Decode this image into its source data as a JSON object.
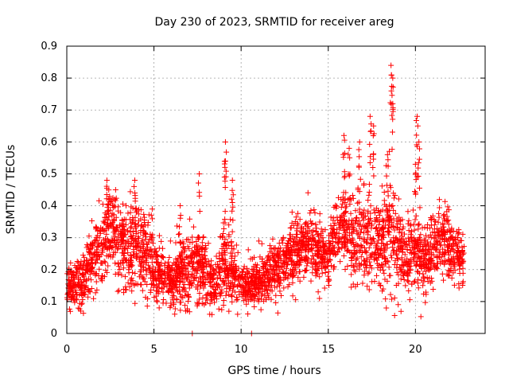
{
  "chart_data": {
    "type": "scatter",
    "title": "Day 230 of 2023, SRMTID for receiver areg",
    "xlabel": "GPS time / hours",
    "ylabel": "SRMTID / TECUs",
    "xlim": [
      0,
      24
    ],
    "ylim": [
      0,
      0.9
    ],
    "xticks": [
      0,
      5,
      10,
      15,
      20
    ],
    "xtick_labels": [
      "0",
      "5",
      "10",
      "15",
      "20"
    ],
    "yticks": [
      0,
      0.1,
      0.2,
      0.3,
      0.4,
      0.5,
      0.6,
      0.7,
      0.8,
      0.9
    ],
    "ytick_labels": [
      "0",
      "0.1",
      "0.2",
      "0.3",
      "0.4",
      "0.5",
      "0.6",
      "0.7",
      "0.8",
      "0.9"
    ],
    "grid": true,
    "marker": "+",
    "color": "#ff0000",
    "x_range_of_data": [
      0,
      22.8
    ],
    "profile": [
      [
        0.0,
        0.16,
        0.05
      ],
      [
        0.5,
        0.15,
        0.04
      ],
      [
        1.0,
        0.18,
        0.06
      ],
      [
        1.5,
        0.24,
        0.07
      ],
      [
        2.0,
        0.28,
        0.08
      ],
      [
        2.5,
        0.33,
        0.08
      ],
      [
        3.0,
        0.3,
        0.08
      ],
      [
        3.5,
        0.26,
        0.08
      ],
      [
        4.0,
        0.3,
        0.09
      ],
      [
        4.5,
        0.24,
        0.07
      ],
      [
        5.0,
        0.21,
        0.06
      ],
      [
        5.5,
        0.17,
        0.05
      ],
      [
        6.0,
        0.17,
        0.05
      ],
      [
        6.5,
        0.19,
        0.06
      ],
      [
        7.0,
        0.2,
        0.07
      ],
      [
        7.5,
        0.22,
        0.08
      ],
      [
        8.0,
        0.19,
        0.07
      ],
      [
        8.5,
        0.15,
        0.05
      ],
      [
        9.0,
        0.22,
        0.09
      ],
      [
        9.5,
        0.19,
        0.06
      ],
      [
        10.0,
        0.15,
        0.04
      ],
      [
        10.5,
        0.14,
        0.04
      ],
      [
        11.0,
        0.17,
        0.05
      ],
      [
        11.5,
        0.18,
        0.05
      ],
      [
        12.0,
        0.2,
        0.05
      ],
      [
        12.5,
        0.23,
        0.06
      ],
      [
        13.0,
        0.25,
        0.06
      ],
      [
        13.5,
        0.27,
        0.06
      ],
      [
        14.0,
        0.27,
        0.06
      ],
      [
        14.5,
        0.25,
        0.06
      ],
      [
        15.0,
        0.24,
        0.05
      ],
      [
        15.5,
        0.3,
        0.07
      ],
      [
        16.0,
        0.34,
        0.09
      ],
      [
        16.5,
        0.29,
        0.08
      ],
      [
        17.0,
        0.3,
        0.09
      ],
      [
        17.5,
        0.29,
        0.09
      ],
      [
        18.0,
        0.27,
        0.08
      ],
      [
        18.5,
        0.32,
        0.12
      ],
      [
        19.0,
        0.27,
        0.08
      ],
      [
        19.5,
        0.23,
        0.07
      ],
      [
        20.0,
        0.25,
        0.08
      ],
      [
        20.5,
        0.23,
        0.07
      ],
      [
        21.0,
        0.27,
        0.07
      ],
      [
        21.5,
        0.29,
        0.07
      ],
      [
        22.0,
        0.26,
        0.06
      ],
      [
        22.5,
        0.24,
        0.05
      ],
      [
        22.8,
        0.22,
        0.05
      ]
    ],
    "points_per_hour": 140,
    "spikes": [
      {
        "x": 2.3,
        "y": 0.48
      },
      {
        "x": 2.8,
        "y": 0.45
      },
      {
        "x": 3.9,
        "y": 0.48
      },
      {
        "x": 4.9,
        "y": 0.39
      },
      {
        "x": 6.5,
        "y": 0.4
      },
      {
        "x": 7.2,
        "y": 0.0
      },
      {
        "x": 7.6,
        "y": 0.5
      },
      {
        "x": 9.1,
        "y": 0.6
      },
      {
        "x": 9.1,
        "y": 0.54
      },
      {
        "x": 9.5,
        "y": 0.48
      },
      {
        "x": 9.5,
        "y": 0.41
      },
      {
        "x": 10.6,
        "y": 0.0
      },
      {
        "x": 15.9,
        "y": 0.62
      },
      {
        "x": 16.2,
        "y": 0.58
      },
      {
        "x": 16.8,
        "y": 0.6
      },
      {
        "x": 17.4,
        "y": 0.68
      },
      {
        "x": 17.6,
        "y": 0.65
      },
      {
        "x": 18.6,
        "y": 0.84
      },
      {
        "x": 18.7,
        "y": 0.8
      },
      {
        "x": 18.7,
        "y": 0.72
      },
      {
        "x": 18.4,
        "y": 0.56
      },
      {
        "x": 20.1,
        "y": 0.68
      },
      {
        "x": 20.2,
        "y": 0.6
      },
      {
        "x": 20.0,
        "y": 0.53
      },
      {
        "x": 8.2,
        "y": 0.06
      },
      {
        "x": 9.8,
        "y": 0.06
      },
      {
        "x": 0.8,
        "y": 0.07
      },
      {
        "x": 5.3,
        "y": 0.08
      }
    ]
  }
}
